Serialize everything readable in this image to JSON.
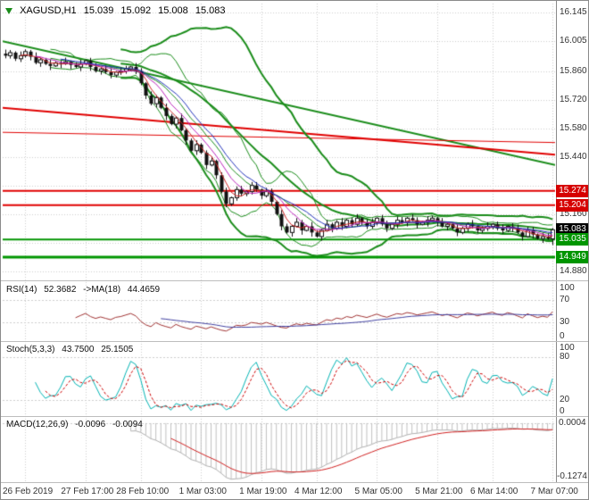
{
  "header": {
    "symbol_timeframe": "XAGUSD,H1",
    "open": "15.039",
    "high": "15.092",
    "low": "15.008",
    "close": "15.083"
  },
  "chart_data": {
    "type": "candlestick",
    "symbol": "XAGUSD",
    "timeframe": "H1",
    "x_labels": [
      "26 Feb 2019",
      "27 Feb 17:00",
      "28 Feb 10:00",
      "1 Mar 03:00",
      "1 Mar 19:00",
      "4 Mar 12:00",
      "5 Mar 05:00",
      "5 Mar 21:00",
      "6 Mar 14:00",
      "7 Mar 07:00"
    ],
    "candles_close": [
      15.935,
      15.95,
      15.92,
      15.935,
      15.955,
      15.93,
      15.9,
      15.915,
      15.895,
      15.885,
      15.9,
      15.895,
      15.905,
      15.89,
      15.88,
      15.895,
      15.91,
      15.88,
      15.86,
      15.87,
      15.855,
      15.84,
      15.855,
      15.86,
      15.87,
      15.88,
      15.86,
      15.8,
      15.74,
      15.7,
      15.73,
      15.68,
      15.64,
      15.6,
      15.63,
      15.57,
      15.52,
      15.47,
      15.5,
      15.46,
      15.4,
      15.42,
      15.35,
      15.27,
      15.21,
      15.24,
      15.28,
      15.26,
      15.27,
      15.3,
      15.28,
      15.25,
      15.27,
      15.22,
      15.16,
      15.1,
      15.07,
      15.1,
      15.12,
      15.08,
      15.1,
      15.07,
      15.05,
      15.08,
      15.11,
      15.09,
      15.12,
      15.1,
      15.13,
      15.11,
      15.14,
      15.12,
      15.1,
      15.12,
      15.14,
      15.11,
      15.09,
      15.11,
      15.13,
      15.12,
      15.14,
      15.13,
      15.11,
      15.12,
      15.13,
      15.14,
      15.12,
      15.1,
      15.11,
      15.09,
      15.07,
      15.09,
      15.11,
      15.1,
      15.08,
      15.09,
      15.1,
      15.11,
      15.09,
      15.08,
      15.1,
      15.09,
      15.07,
      15.05,
      15.08,
      15.06,
      15.04,
      15.05,
      15.039,
      15.083
    ],
    "price_gridlines": [
      16.145,
      16.005,
      15.86,
      15.72,
      15.58,
      15.44,
      15.3,
      15.16,
      15.02,
      14.88
    ],
    "price_axis": {
      "labels": [
        {
          "text": "16.145",
          "price": 16.145
        },
        {
          "text": "16.005",
          "price": 16.005
        },
        {
          "text": "15.860",
          "price": 15.86
        },
        {
          "text": "15.720",
          "price": 15.72
        },
        {
          "text": "15.580",
          "price": 15.58
        },
        {
          "text": "15.440",
          "price": 15.44
        },
        {
          "text": "15.160",
          "price": 15.16
        },
        {
          "text": "14.880",
          "price": 14.88
        }
      ],
      "badges": [
        {
          "text": "15.274",
          "price": 15.274,
          "bg": "#d60000"
        },
        {
          "text": "15.204",
          "price": 15.204,
          "bg": "#d60000"
        },
        {
          "text": "15.083",
          "price": 15.083,
          "bg": "#000000"
        },
        {
          "text": "15.035",
          "price": 15.035,
          "bg": "#009500"
        },
        {
          "text": "14.949",
          "price": 14.949,
          "bg": "#009500"
        }
      ]
    },
    "overlays": {
      "bollinger_fast": {
        "period": 10,
        "deviation": 2.0,
        "color": "#1a8c1a",
        "width": 1
      },
      "bollinger_slow": {
        "period": 24,
        "deviation": 2.3,
        "color": "#1a8c1a",
        "width": 2
      },
      "mas": [
        {
          "period": 4,
          "color": "#cc2222"
        },
        {
          "period": 7,
          "color": "#bb22bb"
        },
        {
          "period": 12,
          "color": "#2233bb"
        }
      ],
      "trendlines": [
        {
          "price_start": 16.005,
          "price_end": 15.4,
          "color": "#1a8c1a",
          "width": 2
        },
        {
          "price_start": 15.68,
          "price_end": 15.45,
          "color": "#e00000",
          "width": 2
        },
        {
          "price_start": 15.56,
          "price_end": 15.51,
          "color": "#e00000",
          "width": 1
        }
      ],
      "hlines": [
        {
          "price": 15.274,
          "color": "#e00000",
          "width": 2
        },
        {
          "price": 15.204,
          "color": "#e00000",
          "width": 2
        },
        {
          "price": 15.035,
          "color": "#009500",
          "width": 2
        },
        {
          "price": 14.949,
          "color": "#009500",
          "width": 3
        }
      ]
    },
    "panes": {
      "rsi": {
        "label": "RSI(14)",
        "value": "52.3682",
        "ma_label": "->MA(18)",
        "ma_value": "44.4659",
        "period": 14,
        "ma_period": 18,
        "levels": [
          100,
          70,
          30,
          0
        ],
        "colors": {
          "main": "#a03333",
          "ma": "#4040a0"
        }
      },
      "stoch": {
        "label": "Stoch(5,3,3)",
        "value": "43.7500",
        "signal_value": "25.1505",
        "levels": [
          100,
          80,
          20,
          0
        ],
        "colors": {
          "main": "#00b3b3",
          "signal": "#cc0000"
        }
      },
      "macd": {
        "label": "MACD(12,26,9)",
        "value": "-0.0096",
        "signal_value": "-0.0094",
        "levels": [
          "0.0004",
          "-0.1274"
        ],
        "colors": {
          "line": "#d02020",
          "hist": "#c0c0c0"
        }
      }
    }
  }
}
